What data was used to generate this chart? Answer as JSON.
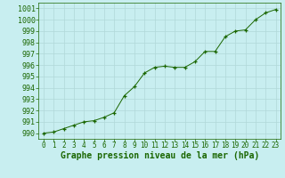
{
  "x": [
    0,
    1,
    2,
    3,
    4,
    5,
    6,
    7,
    8,
    9,
    10,
    11,
    12,
    13,
    14,
    15,
    16,
    17,
    18,
    19,
    20,
    21,
    22,
    23
  ],
  "y": [
    990.0,
    990.1,
    990.4,
    990.7,
    991.0,
    991.1,
    991.4,
    991.8,
    993.3,
    994.1,
    995.3,
    995.8,
    995.9,
    995.8,
    995.8,
    996.3,
    997.2,
    997.2,
    998.5,
    999.0,
    999.1,
    1000.0,
    1000.6,
    1000.9
  ],
  "ylim": [
    989.5,
    1001.5
  ],
  "yticks": [
    990,
    991,
    992,
    993,
    994,
    995,
    996,
    997,
    998,
    999,
    1000,
    1001
  ],
  "xlim": [
    -0.5,
    23.5
  ],
  "xticks": [
    0,
    1,
    2,
    3,
    4,
    5,
    6,
    7,
    8,
    9,
    10,
    11,
    12,
    13,
    14,
    15,
    16,
    17,
    18,
    19,
    20,
    21,
    22,
    23
  ],
  "xlabel": "Graphe pression niveau de la mer (hPa)",
  "line_color": "#1a6600",
  "marker_color": "#1a6600",
  "bg_color": "#c8eef0",
  "grid_color": "#b0d8d8",
  "xlabel_color": "#1a6600",
  "tick_color": "#1a6600",
  "xlabel_fontsize": 7,
  "ytick_fontsize": 6,
  "xtick_fontsize": 5.5
}
